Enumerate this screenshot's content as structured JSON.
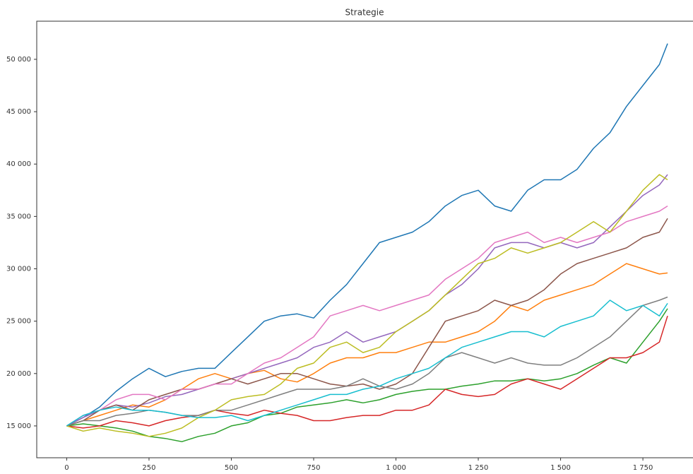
{
  "chart_data": {
    "type": "line",
    "title": "Strategie",
    "x": [
      0,
      50,
      100,
      150,
      200,
      250,
      300,
      350,
      400,
      450,
      500,
      550,
      600,
      650,
      700,
      750,
      800,
      850,
      900,
      950,
      1000,
      1050,
      1100,
      1150,
      1200,
      1250,
      1300,
      1350,
      1400,
      1450,
      1500,
      1550,
      1600,
      1650,
      1700,
      1750,
      1800,
      1825
    ],
    "series": [
      {
        "color": "#1f77b4",
        "values": [
          15000,
          15800,
          16800,
          18300,
          19500,
          20500,
          19700,
          20200,
          20500,
          20500,
          22000,
          23500,
          25000,
          25500,
          25700,
          25300,
          27000,
          28500,
          30500,
          32500,
          33000,
          33500,
          34500,
          36000,
          37000,
          37500,
          36000,
          35500,
          37500,
          38500,
          38500,
          39500,
          41500,
          43000,
          45500,
          47500,
          49500,
          51500
        ]
      },
      {
        "color": "#ff7f0e",
        "values": [
          15000,
          15500,
          16000,
          16500,
          17000,
          16800,
          17500,
          18500,
          19500,
          20000,
          19500,
          20000,
          20300,
          19500,
          19200,
          20000,
          21000,
          21500,
          21500,
          22000,
          22000,
          22500,
          23000,
          23000,
          23500,
          24000,
          25000,
          26500,
          26000,
          27000,
          27500,
          28000,
          28500,
          29500,
          30500,
          30000,
          29500,
          29600
        ]
      },
      {
        "color": "#2ca02c",
        "values": [
          15000,
          15200,
          15000,
          14800,
          14500,
          14000,
          13800,
          13500,
          14000,
          14300,
          15000,
          15300,
          16000,
          16200,
          16800,
          17000,
          17200,
          17500,
          17200,
          17500,
          18000,
          18300,
          18500,
          18500,
          18800,
          19000,
          19300,
          19300,
          19500,
          19300,
          19500,
          20000,
          20800,
          21500,
          21000,
          23000,
          25000,
          26200
        ]
      },
      {
        "color": "#d62728",
        "values": [
          15000,
          14800,
          15000,
          15500,
          15300,
          15000,
          15500,
          15800,
          16000,
          16500,
          16200,
          16000,
          16500,
          16200,
          16000,
          15500,
          15500,
          15800,
          16000,
          16000,
          16500,
          16500,
          17000,
          18500,
          18000,
          17800,
          18000,
          19000,
          19500,
          19000,
          18500,
          19500,
          20500,
          21500,
          21500,
          22000,
          23000,
          25500
        ]
      },
      {
        "color": "#9467bd",
        "values": [
          15000,
          15800,
          16500,
          17000,
          16800,
          17200,
          17800,
          18000,
          18500,
          19000,
          19500,
          20000,
          20500,
          21000,
          21500,
          22500,
          23000,
          24000,
          23000,
          23500,
          24000,
          25000,
          26000,
          27500,
          28500,
          30000,
          32000,
          32500,
          32500,
          32000,
          32500,
          32000,
          32500,
          34000,
          35500,
          37000,
          38000,
          39000
        ]
      },
      {
        "color": "#8c564b",
        "values": [
          15000,
          15500,
          16500,
          17000,
          16500,
          17500,
          18000,
          18500,
          18500,
          19000,
          19500,
          19000,
          19500,
          20000,
          20000,
          19500,
          19000,
          18800,
          19000,
          18500,
          19000,
          20000,
          22500,
          25000,
          25500,
          26000,
          27000,
          26500,
          27000,
          28000,
          29500,
          30500,
          31000,
          31500,
          32000,
          33000,
          33500,
          34800
        ]
      },
      {
        "color": "#e377c2",
        "values": [
          15000,
          16000,
          16500,
          17500,
          18000,
          18000,
          17500,
          18500,
          18500,
          19000,
          19000,
          20000,
          21000,
          21500,
          22500,
          23500,
          25500,
          26000,
          26500,
          26000,
          26500,
          27000,
          27500,
          29000,
          30000,
          31000,
          32500,
          33000,
          33500,
          32500,
          33000,
          32500,
          33000,
          33500,
          34500,
          35000,
          35500,
          36000
        ]
      },
      {
        "color": "#7f7f7f",
        "values": [
          15000,
          15500,
          15500,
          16000,
          16200,
          16500,
          16300,
          16000,
          16000,
          16500,
          16500,
          17000,
          17500,
          18000,
          18500,
          18500,
          18500,
          18800,
          19500,
          18800,
          18500,
          19000,
          20000,
          21500,
          22000,
          21500,
          21000,
          21500,
          21000,
          20800,
          20800,
          21500,
          22500,
          23500,
          25000,
          26500,
          27000,
          27300
        ]
      },
      {
        "color": "#bcbd22",
        "values": [
          15000,
          14500,
          14800,
          14500,
          14300,
          14000,
          14300,
          14800,
          15800,
          16500,
          17500,
          17800,
          18000,
          19000,
          20500,
          21000,
          22500,
          23000,
          22000,
          22500,
          24000,
          25000,
          26000,
          27500,
          29000,
          30500,
          31000,
          32000,
          31500,
          32000,
          32500,
          33500,
          34500,
          33500,
          35500,
          37500,
          39000,
          38500
        ]
      },
      {
        "color": "#17becf",
        "values": [
          15000,
          16000,
          16500,
          16800,
          16500,
          16500,
          16300,
          16000,
          15800,
          15800,
          16000,
          15500,
          16000,
          16500,
          17000,
          17500,
          18000,
          18000,
          18500,
          18800,
          19500,
          20000,
          20500,
          21500,
          22500,
          23000,
          23500,
          24000,
          24000,
          23500,
          24500,
          25000,
          25500,
          27000,
          26000,
          26500,
          25500,
          26700
        ]
      }
    ],
    "xlim": [
      -91,
      1900
    ],
    "xticks": [
      0,
      250,
      500,
      750,
      {
        "value": 1000,
        "label": "1 000"
      },
      {
        "value": 1250,
        "label": "1 250"
      },
      {
        "value": 1500,
        "label": "1 500"
      },
      {
        "value": 1750,
        "label": "1 750"
      }
    ],
    "ylim": [
      11960,
      53640
    ],
    "yticks": [
      {
        "value": 15000,
        "label": "15 000"
      },
      {
        "value": 20000,
        "label": "20 000"
      },
      {
        "value": 25000,
        "label": "25 000"
      },
      {
        "value": 30000,
        "label": "30 000"
      },
      {
        "value": 35000,
        "label": "35 000"
      },
      {
        "value": 40000,
        "label": "40 000"
      },
      {
        "value": 45000,
        "label": "45 000"
      },
      {
        "value": 50000,
        "label": "50 000"
      }
    ],
    "grid": false
  }
}
